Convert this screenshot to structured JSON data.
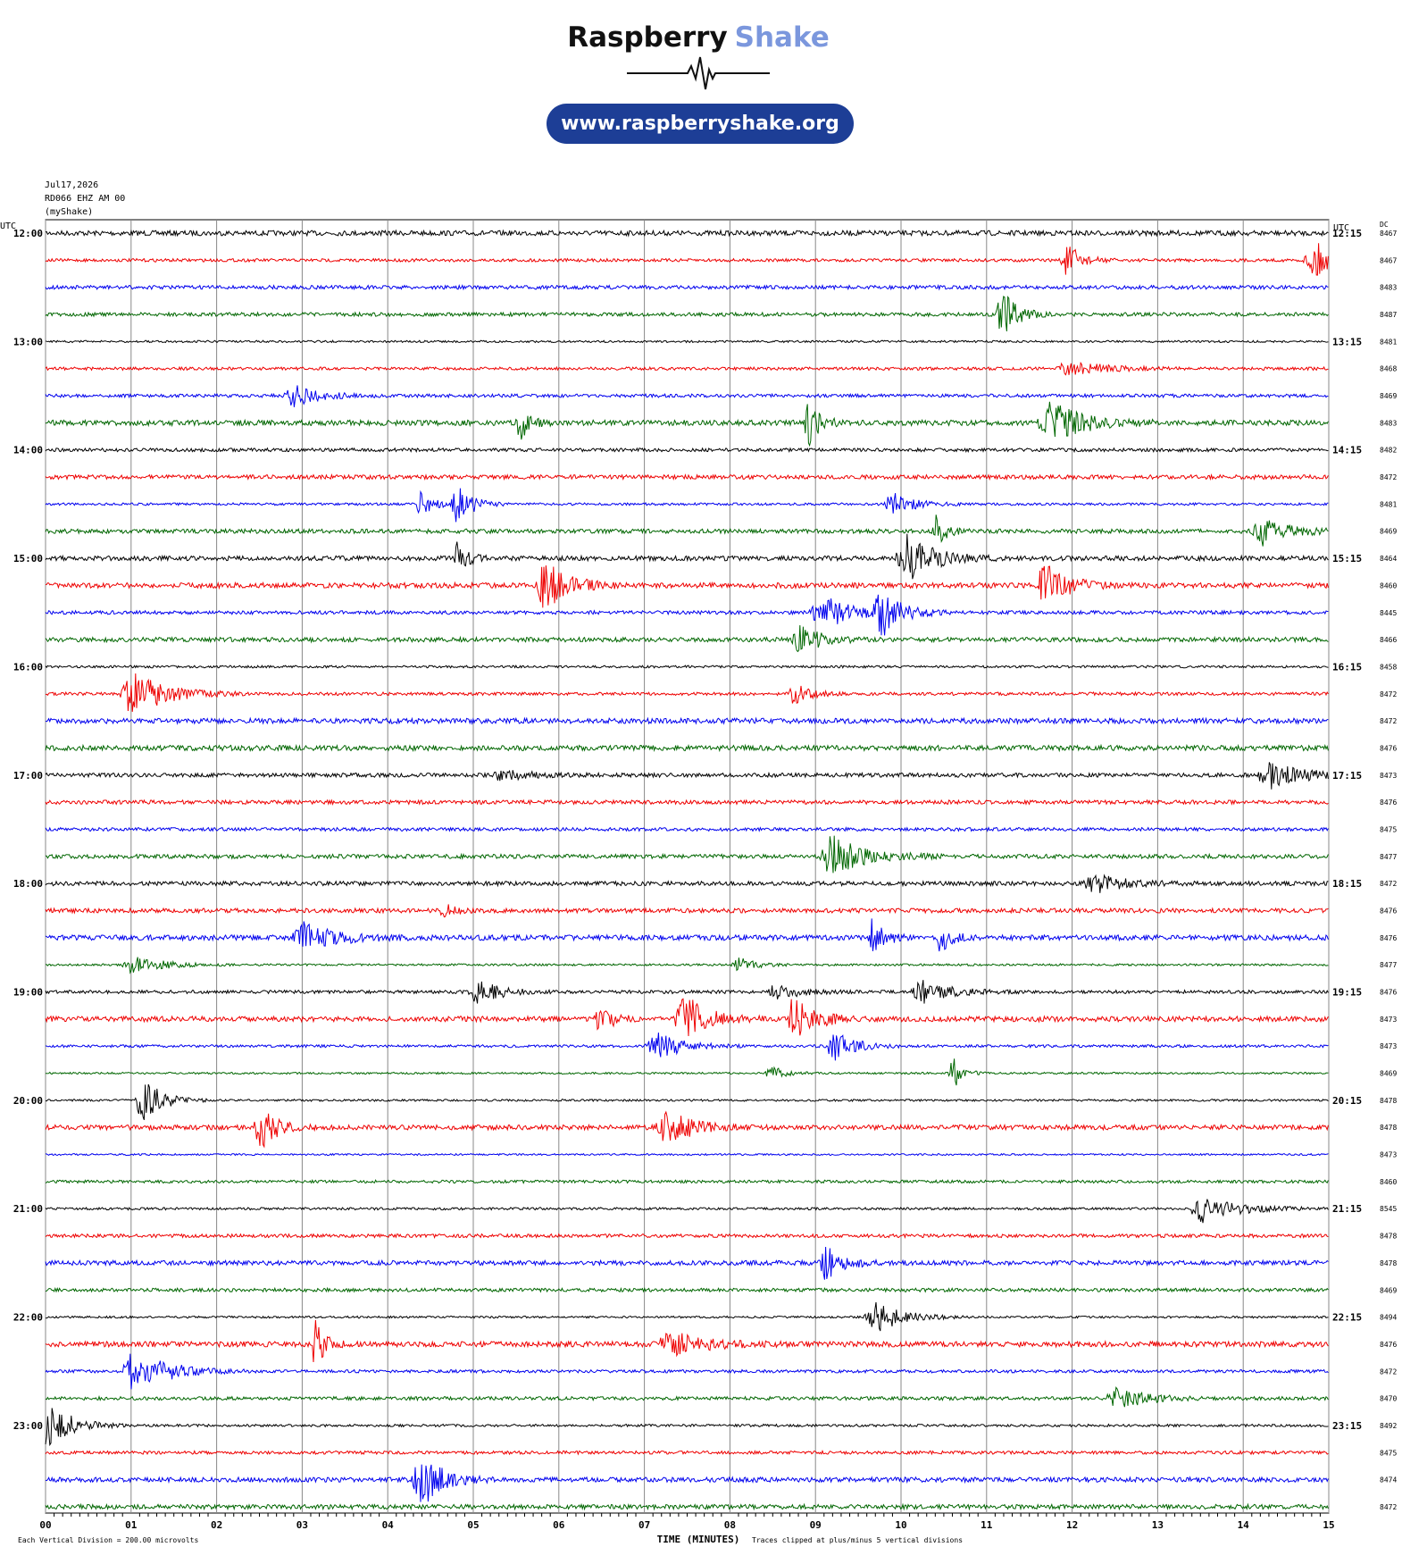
{
  "header": {
    "brand": "Raspberry",
    "brand_accent": "Shake",
    "url": "www.raspberryshake.org"
  },
  "meta": [
    "Jul17,2026",
    "RD066 EHZ AM 00",
    "(myShake)"
  ],
  "left_header": "UTC",
  "right_header": "UTC",
  "dc_header": "DC",
  "left_labels": [
    "12:00",
    "13:00",
    "14:00",
    "15:00",
    "16:00",
    "17:00",
    "18:00",
    "19:00",
    "20:00",
    "21:00",
    "22:00",
    "23:00"
  ],
  "right_labels": [
    "12:15",
    "13:15",
    "14:15",
    "15:15",
    "16:15",
    "17:15",
    "18:15",
    "19:15",
    "20:15",
    "21:15",
    "22:15",
    "23:15"
  ],
  "dc_values": [
    8467,
    8467,
    8483,
    8487,
    8481,
    8468,
    8469,
    8483,
    8482,
    8472,
    8481,
    8469,
    8464,
    8460,
    8445,
    8466,
    8458,
    8472,
    8472,
    8476,
    8473,
    8476,
    8475,
    8477,
    8472,
    8476,
    8476,
    8477,
    8476,
    8473,
    8473,
    8469,
    8478,
    8478,
    8473,
    8460,
    8545,
    8478,
    8478,
    8469,
    8494,
    8476,
    8472,
    8470,
    8492,
    8475,
    8474,
    8472
  ],
  "x_labels": [
    "00",
    "01",
    "02",
    "03",
    "04",
    "05",
    "06",
    "07",
    "08",
    "09",
    "10",
    "11",
    "12",
    "13",
    "14",
    "15"
  ],
  "x_title": "TIME (MINUTES)",
  "footer_left": "Each Vertical Division =  200.00 microvolts",
  "footer_right": "Traces clipped at plus/minus 5 vertical divisions"
}
